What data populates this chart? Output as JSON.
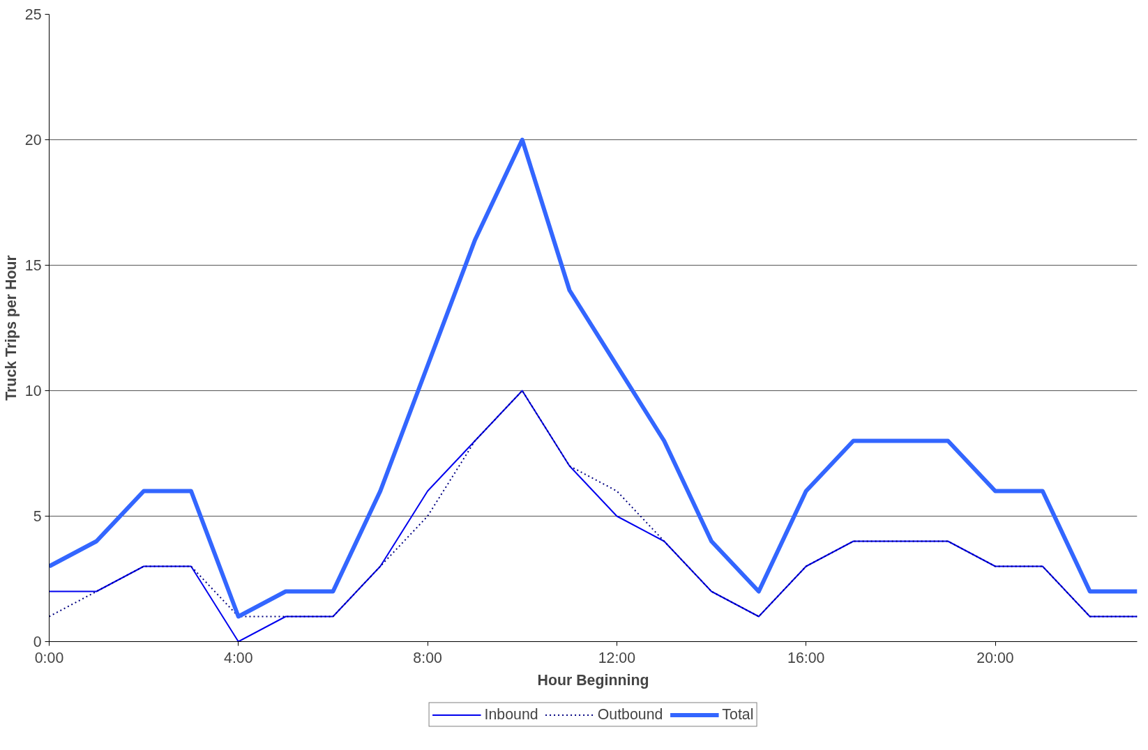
{
  "chart_data": {
    "type": "line",
    "xlabel": "Hour Beginning",
    "ylabel": "Truck Trips per Hour",
    "x": [
      0,
      1,
      2,
      3,
      4,
      5,
      6,
      7,
      8,
      9,
      10,
      11,
      12,
      13,
      14,
      15,
      16,
      17,
      18,
      19,
      20,
      21,
      22,
      23
    ],
    "series": [
      {
        "name": "Inbound",
        "color": "#0000ee",
        "line_style": "solid",
        "values": [
          2,
          2,
          3,
          3,
          0,
          1,
          1,
          3,
          6,
          8,
          10,
          7,
          5,
          4,
          2,
          1,
          3,
          4,
          4,
          4,
          3,
          3,
          1,
          1
        ]
      },
      {
        "name": "Outbound",
        "color": "#000080",
        "line_style": "dotted",
        "values": [
          1,
          2,
          3,
          3,
          1,
          1,
          1,
          3,
          5,
          8,
          10,
          7,
          6,
          4,
          2,
          1,
          3,
          4,
          4,
          4,
          3,
          3,
          1,
          1
        ]
      },
      {
        "name": "Total",
        "color": "#3366ff",
        "line_style": "solid",
        "values": [
          3,
          4,
          6,
          6,
          1,
          2,
          2,
          6,
          11,
          16,
          20,
          14,
          11,
          8,
          4,
          2,
          6,
          8,
          8,
          8,
          6,
          6,
          2,
          2
        ]
      }
    ],
    "xlim": [
      0,
      23
    ],
    "xticks": [
      {
        "value": 0,
        "label": "0:00"
      },
      {
        "value": 4,
        "label": "4:00"
      },
      {
        "value": 8,
        "label": "8:00"
      },
      {
        "value": 12,
        "label": "12:00"
      },
      {
        "value": 16,
        "label": "16:00"
      },
      {
        "value": 20,
        "label": "20:00"
      }
    ],
    "ylim": [
      0,
      25
    ],
    "yticks": [
      0,
      5,
      10,
      15,
      20,
      25
    ],
    "grid": "y",
    "legend": "bottom",
    "marker": "none"
  }
}
